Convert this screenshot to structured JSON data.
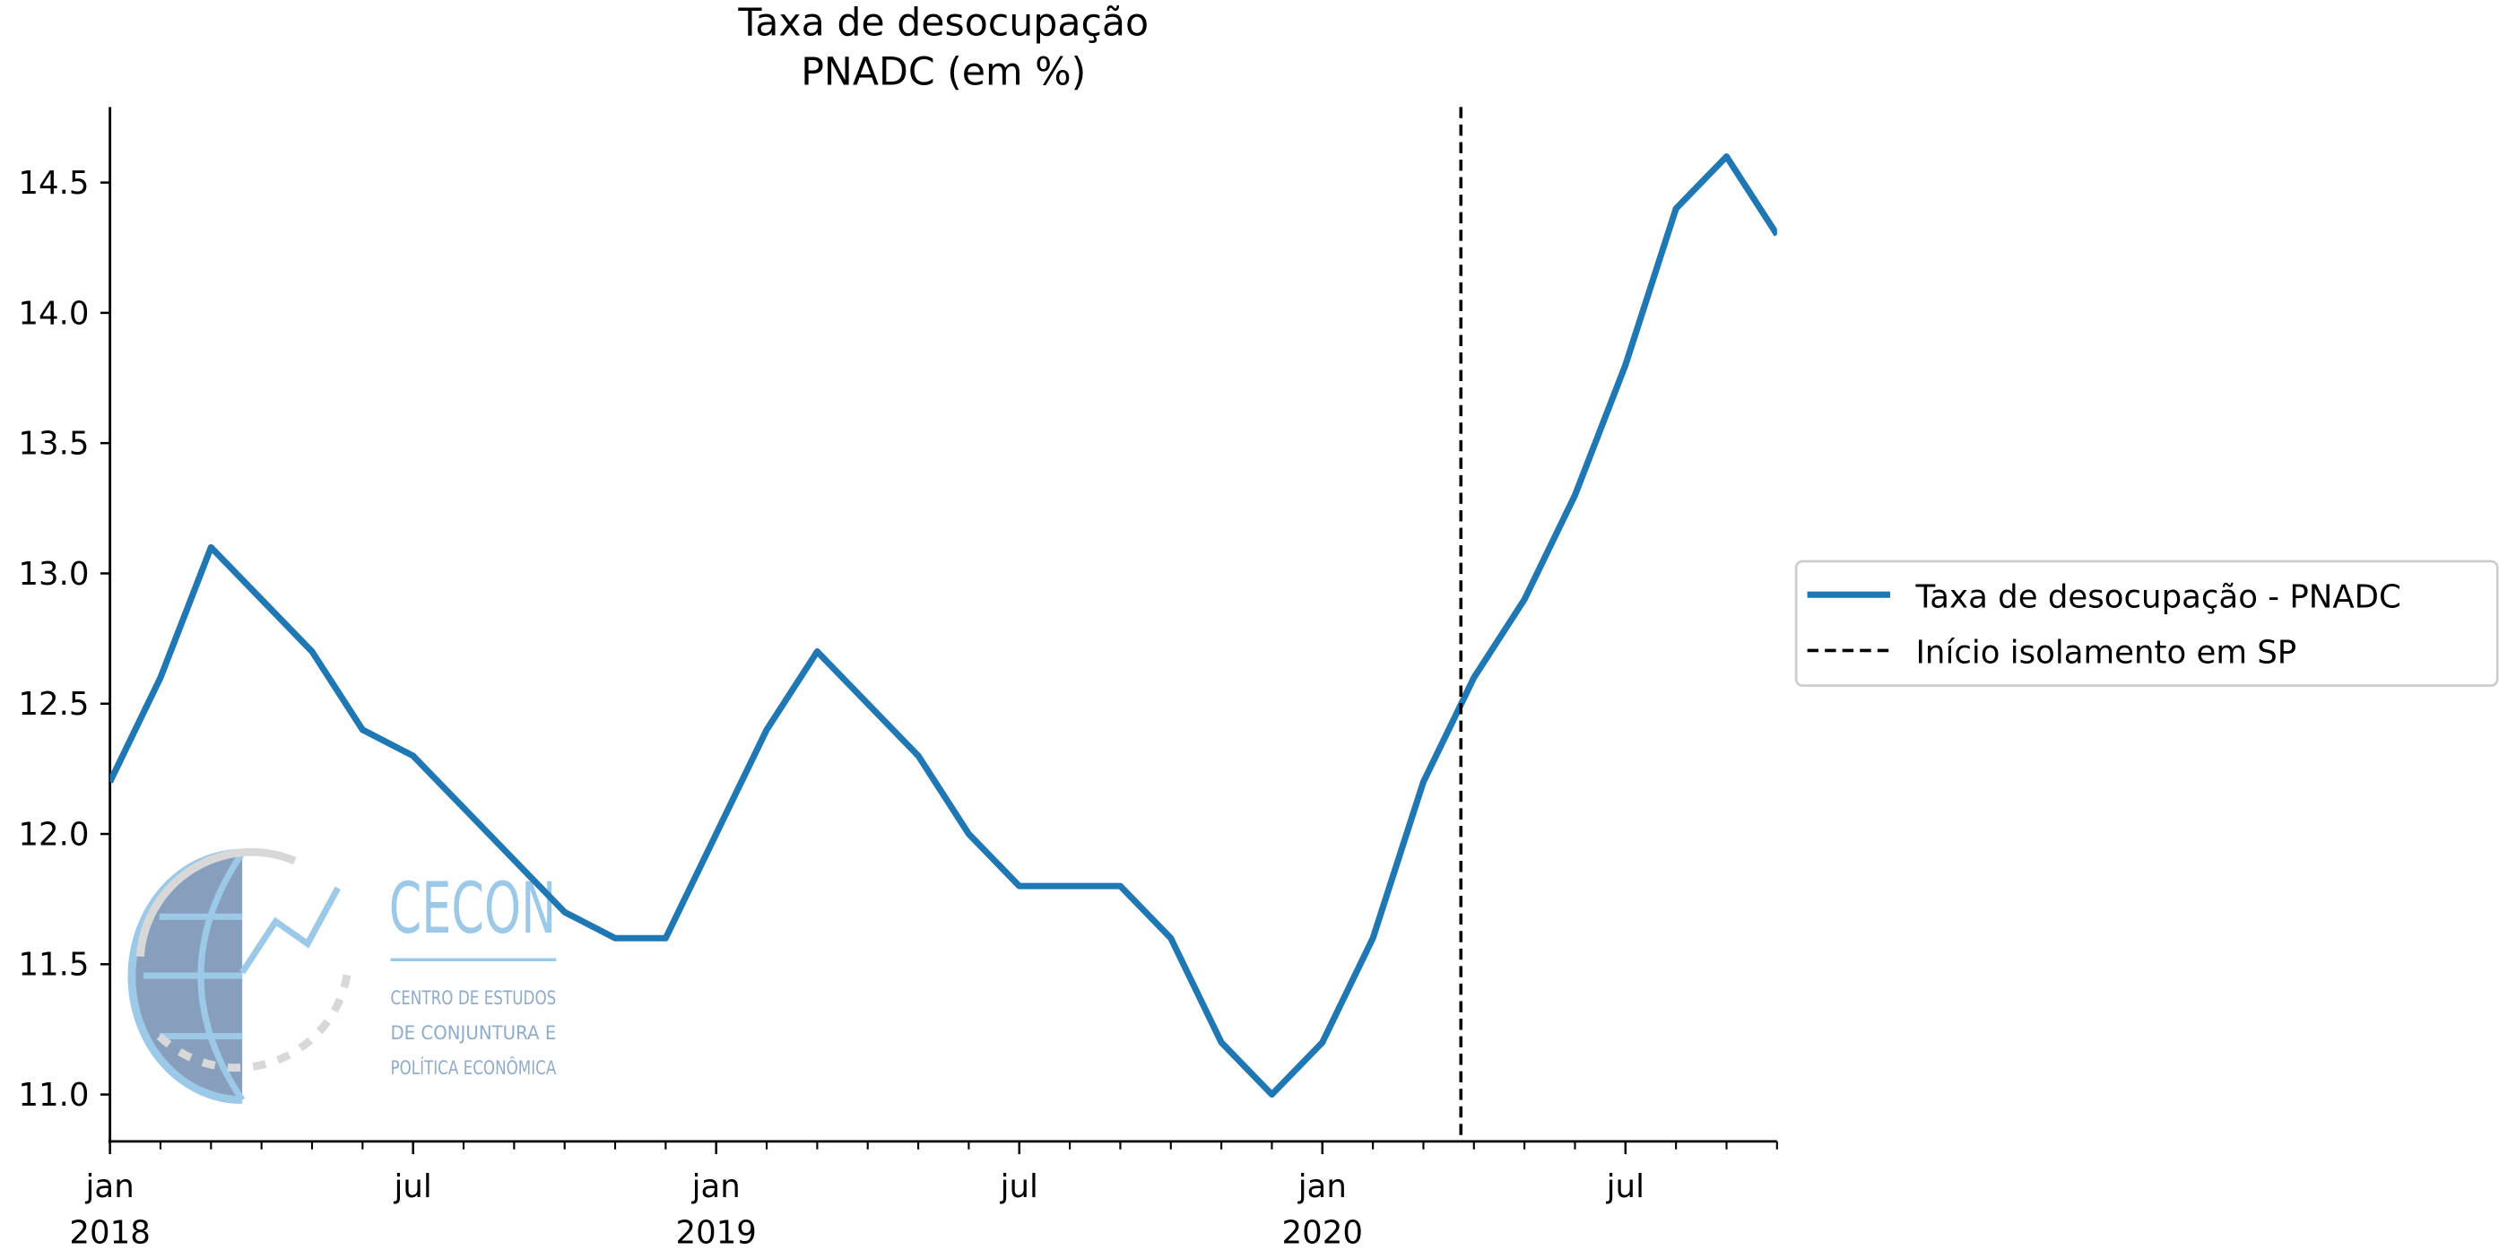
{
  "chart_data": {
    "type": "line",
    "title": [
      "Taxa de desocupação",
      "PNADC (em %)"
    ],
    "x": [
      "2018-01",
      "2018-02",
      "2018-03",
      "2018-04",
      "2018-05",
      "2018-06",
      "2018-07",
      "2018-08",
      "2018-09",
      "2018-10",
      "2018-11",
      "2018-12",
      "2019-01",
      "2019-02",
      "2019-03",
      "2019-04",
      "2019-05",
      "2019-06",
      "2019-07",
      "2019-08",
      "2019-09",
      "2019-10",
      "2019-11",
      "2019-12",
      "2020-01",
      "2020-02",
      "2020-03",
      "2020-04",
      "2020-05",
      "2020-06",
      "2020-07",
      "2020-08",
      "2020-09",
      "2020-10"
    ],
    "series": [
      {
        "name": "Taxa de desocupação - PNADC",
        "color": "#1f77b4",
        "values": [
          12.2,
          12.6,
          13.1,
          12.9,
          12.7,
          12.4,
          12.3,
          12.1,
          11.9,
          11.7,
          11.6,
          11.6,
          12.0,
          12.4,
          12.7,
          12.5,
          12.3,
          12.0,
          11.8,
          11.8,
          11.8,
          11.6,
          11.2,
          11.0,
          11.2,
          11.6,
          12.2,
          12.6,
          12.9,
          13.3,
          13.8,
          14.4,
          14.6,
          14.3
        ]
      }
    ],
    "vline": {
      "x": "2020-03-24",
      "label": "Início isolamento em SP",
      "color": "#000000"
    },
    "xlim": [
      "2018-01",
      "2020-10"
    ],
    "xticks": [
      {
        "value": "2018-01",
        "label": [
          "jan",
          "2018"
        ]
      },
      {
        "value": "2018-07",
        "label": [
          "jul"
        ]
      },
      {
        "value": "2019-01",
        "label": [
          "jan",
          "2019"
        ]
      },
      {
        "value": "2019-07",
        "label": [
          "jul"
        ]
      },
      {
        "value": "2020-01",
        "label": [
          "jan",
          "2020"
        ]
      },
      {
        "value": "2020-07",
        "label": [
          "jul"
        ]
      }
    ],
    "xminorticks": [
      "2018-02",
      "2018-03",
      "2018-04",
      "2018-05",
      "2018-06",
      "2018-08",
      "2018-09",
      "2018-10",
      "2018-11",
      "2018-12",
      "2019-02",
      "2019-03",
      "2019-04",
      "2019-05",
      "2019-06",
      "2019-08",
      "2019-09",
      "2019-10",
      "2019-11",
      "2019-12",
      "2020-02",
      "2020-03",
      "2020-04",
      "2020-05",
      "2020-06",
      "2020-08",
      "2020-09",
      "2020-10"
    ],
    "ylim": [
      10.82,
      14.79
    ],
    "yticks": [
      {
        "value": 11,
        "label": "11.0"
      },
      11.5,
      {
        "value": 12,
        "label": "12.0"
      },
      12.5,
      {
        "value": 13,
        "label": "13.0"
      },
      13.5,
      {
        "value": 14,
        "label": "14.0"
      },
      14.5
    ],
    "grid": false,
    "legend": "right"
  },
  "logo": {
    "name": "CECON",
    "lines": [
      "CENTRO DE ESTUDOS",
      "DE CONJUNTURA E",
      "POLÍTICA ECONÔMICA"
    ]
  }
}
